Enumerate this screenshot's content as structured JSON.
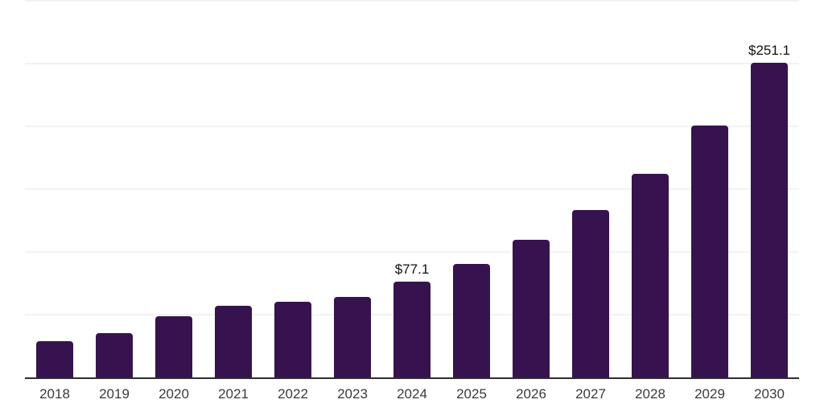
{
  "chart": {
    "background_color": "#ffffff",
    "bar_color": "#36134E",
    "axis_line_color": "#2e2e2e",
    "gridline_color": "#f2f2f2",
    "tick_label_color": "#3a3a3a",
    "data_label_color": "#111111"
  },
  "chart_data": {
    "type": "bar",
    "title": "",
    "xlabel": "",
    "ylabel": "",
    "categories": [
      "2018",
      "2019",
      "2020",
      "2021",
      "2022",
      "2023",
      "2024",
      "2025",
      "2026",
      "2027",
      "2028",
      "2029",
      "2030"
    ],
    "values": [
      29.5,
      35.6,
      49.3,
      57.9,
      60.8,
      65.0,
      77.1,
      91.0,
      110.4,
      133.7,
      163.0,
      201.6,
      251.1
    ],
    "data_labels": {
      "2024": "$77.1",
      "2030": "$251.1"
    },
    "ylim": [
      0,
      300
    ],
    "gridline_values": [
      50,
      100,
      150,
      200,
      250,
      300
    ],
    "grid": "horizontal",
    "legend": "none",
    "y_axis_labels_visible": false
  }
}
